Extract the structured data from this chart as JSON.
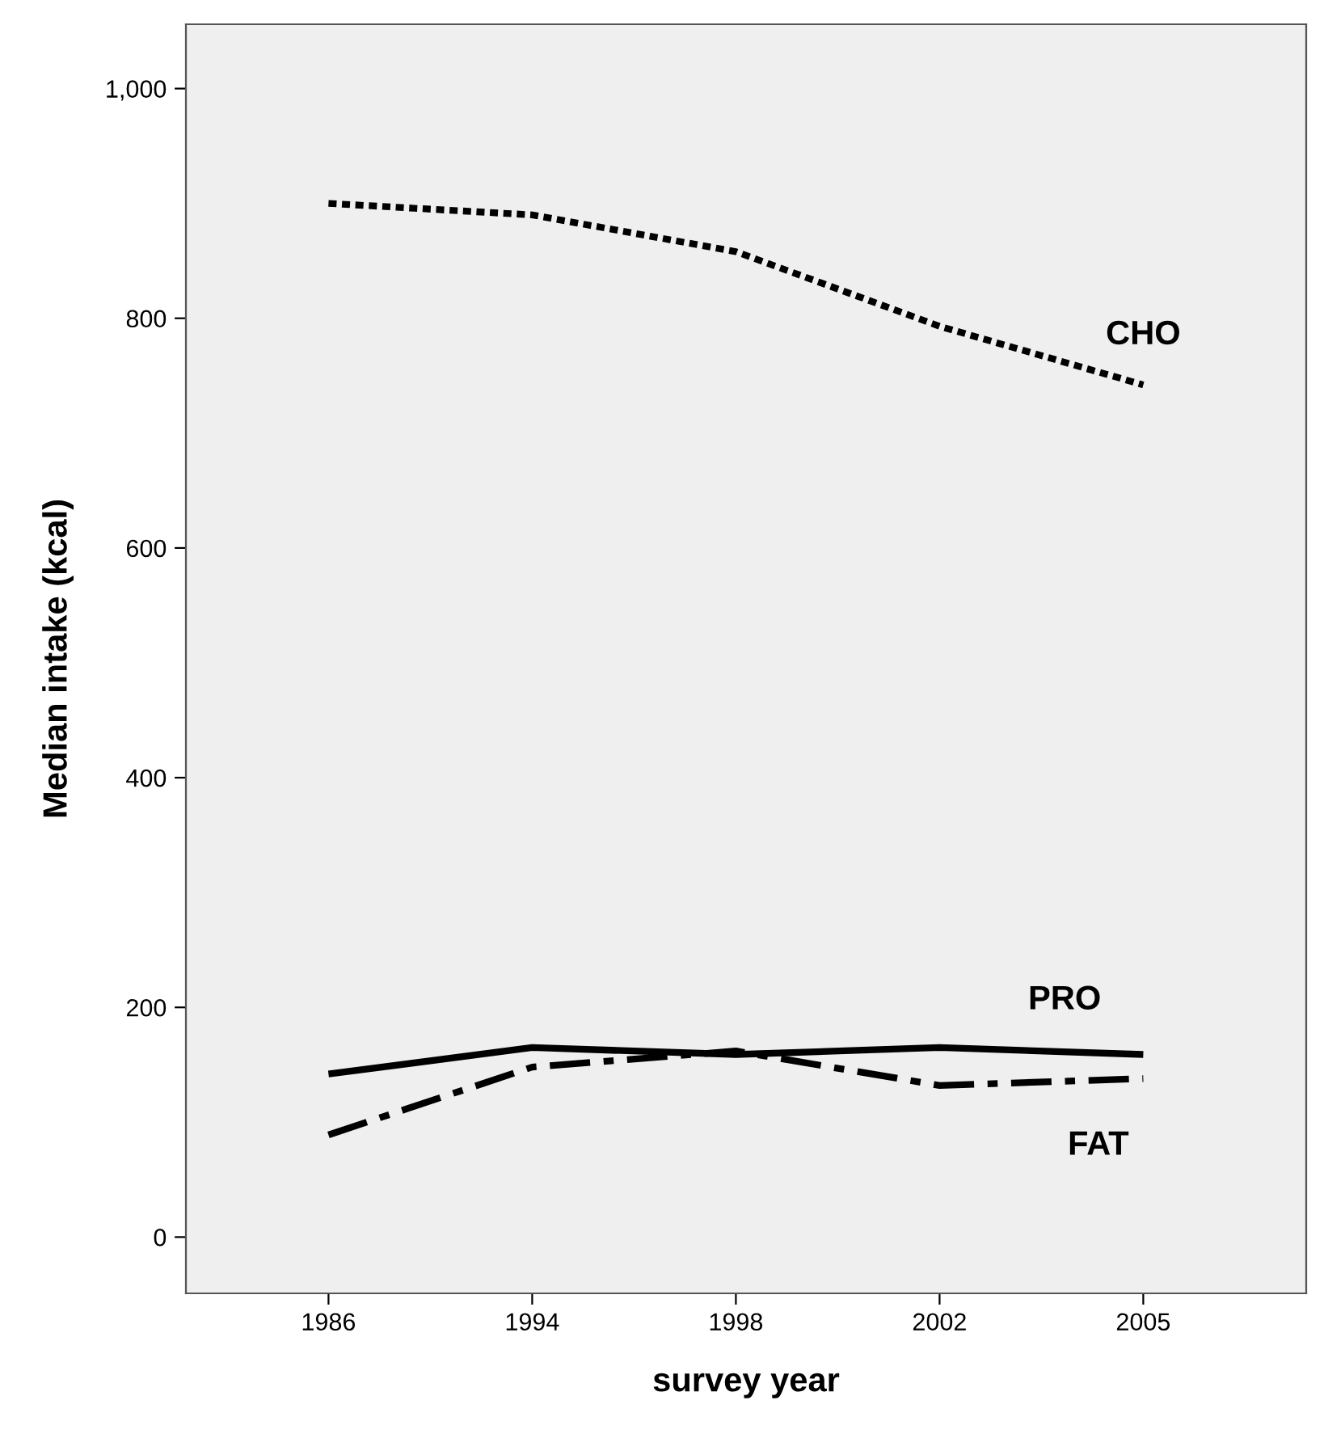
{
  "chart_data": {
    "type": "line",
    "xlabel": "survey year",
    "ylabel": "Median intake (kcal)",
    "categories": [
      "1986",
      "1994",
      "1998",
      "2002",
      "2005"
    ],
    "series": [
      {
        "name": "CHO",
        "color": "#000000",
        "line_style": "dotted",
        "values": [
          900,
          890,
          858,
          793,
          742
        ]
      },
      {
        "name": "PRO",
        "color": "#000000",
        "line_style": "solid",
        "values": [
          142,
          165,
          159,
          165,
          159
        ]
      },
      {
        "name": "FAT",
        "color": "#000000",
        "line_style": "dashed",
        "values": [
          89,
          148,
          162,
          132,
          138
        ]
      }
    ],
    "ylim": [
      -49,
      1056
    ],
    "yticks": [
      0,
      200,
      400,
      600,
      800,
      {
        "value": 1000,
        "label": "1,000"
      }
    ],
    "grid": false,
    "legend": false,
    "marker": "none"
  }
}
